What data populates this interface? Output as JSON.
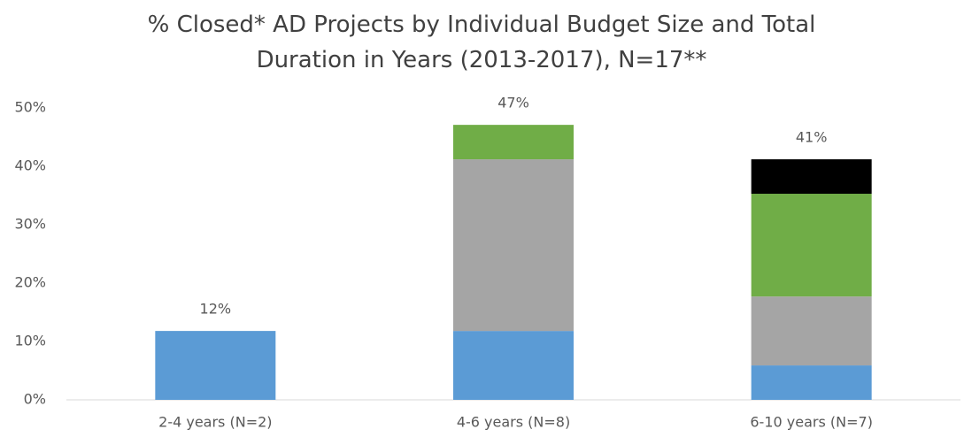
{
  "chart_data": {
    "type": "stacked_bar",
    "title": "% Closed* AD Projects by Individual Budget Size and Total Duration in Years (2013-2017), N=17**",
    "categories": [
      "2-4 years (N=2)",
      "4-6 years (N=8)",
      "6-10 years (N=7)"
    ],
    "series": [
      {
        "color": "#5b9bd5",
        "values": [
          11.8,
          11.8,
          5.9
        ]
      },
      {
        "color": "#a5a5a5",
        "values": [
          0,
          29.4,
          11.8
        ]
      },
      {
        "color": "#70ad47",
        "values": [
          0,
          5.9,
          17.6
        ]
      },
      {
        "color": "#000000",
        "values": [
          0,
          0,
          5.9
        ]
      }
    ],
    "totals": [
      11.8,
      47.1,
      41.2
    ],
    "total_labels": [
      "12%",
      "47%",
      "41%"
    ],
    "ylim": [
      0,
      50
    ],
    "yticks": [
      {
        "value": 0,
        "label": "0%"
      },
      {
        "value": 10,
        "label": "10%"
      },
      {
        "value": 20,
        "label": "20%"
      },
      {
        "value": 30,
        "label": "30%"
      },
      {
        "value": 40,
        "label": "40%"
      },
      {
        "value": 50,
        "label": "50%"
      }
    ],
    "grid": false
  }
}
